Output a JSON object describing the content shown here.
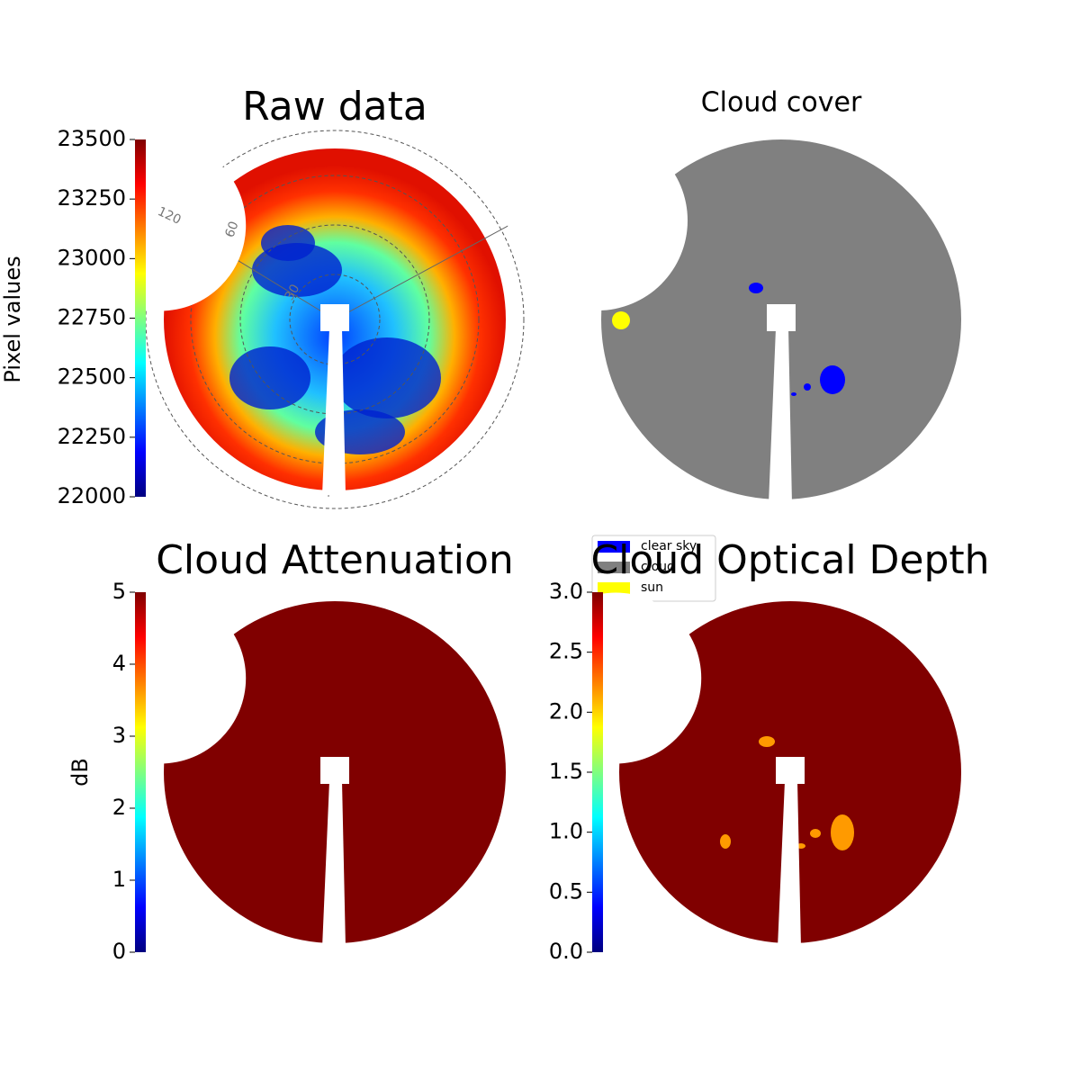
{
  "chart_data": [
    {
      "type": "image",
      "title": "Raw data",
      "clabel": "Pixel values",
      "clim": [
        22000,
        23500
      ],
      "cticks": [
        22000,
        22250,
        22500,
        22750,
        23000,
        23250,
        23500
      ],
      "polar_labels": [
        "120",
        "60",
        "30"
      ]
    },
    {
      "type": "image",
      "title": "Cloud cover",
      "series": [
        {
          "name": "clear sky",
          "color": "#0000ff"
        },
        {
          "name": "cloud",
          "color": "#808080"
        },
        {
          "name": "sun",
          "color": "#ffff00"
        }
      ]
    },
    {
      "type": "image",
      "title": "Cloud Attenuation",
      "clabel": "dB",
      "clim": [
        0,
        5
      ],
      "cticks": [
        0,
        1,
        2,
        3,
        4,
        5
      ]
    },
    {
      "type": "image",
      "title": "Cloud Optical Depth",
      "clim": [
        0,
        3
      ],
      "cticks": [
        {
          "value": 0,
          "label": "0.0"
        },
        {
          "value": 0.5,
          "label": "0.5"
        },
        {
          "value": 1,
          "label": "1.0"
        },
        {
          "value": 1.5,
          "label": "1.5"
        },
        {
          "value": 2,
          "label": "2.0"
        },
        {
          "value": 2.5,
          "label": "2.5"
        },
        {
          "value": 3,
          "label": "3.0"
        }
      ]
    }
  ]
}
